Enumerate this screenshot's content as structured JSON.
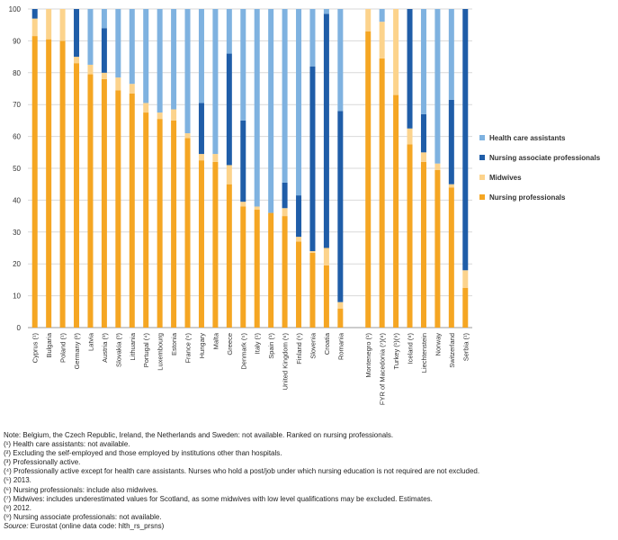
{
  "chart_data": {
    "type": "bar",
    "stacked": true,
    "ylim": [
      0,
      100
    ],
    "yticks": [
      0,
      10,
      20,
      30,
      40,
      50,
      60,
      70,
      80,
      90,
      100
    ],
    "grid": true,
    "legend_position": "right",
    "categories": [
      "Cyprus (¹)",
      "Bulgaria",
      "Poland (¹)",
      "Germany (²)",
      "Latvia",
      "Austria (³)",
      "Slovakia (³)",
      "Lithuania",
      "Portugal (⁴)",
      "Luxembourg",
      "Estonia",
      "France (⁵)",
      "Hungary",
      "Malta",
      "Greece",
      "Denmark (⁵)",
      "Italy (¹)",
      "Spain (¹)",
      "United Kingdom (⁶)",
      "Finland (⁶)",
      "Slovenia",
      "Croatia",
      "Romania",
      "",
      "Montenegro (¹)",
      "FYR of Macedonia (⁷)(⁸)",
      "Turkey (¹)(⁹)",
      "Iceland (⁸)",
      "Liechtenstein",
      "Norway",
      "Switzerland",
      "Serbia (¹)"
    ],
    "series": [
      {
        "name": "Nursing professionals",
        "color": "#f5a623",
        "values": [
          91.5,
          90.5,
          90,
          83,
          79.5,
          78,
          74.5,
          73.5,
          67.5,
          65.5,
          65,
          59.5,
          52.5,
          52,
          45,
          38,
          37,
          36,
          35,
          27,
          23.5,
          19.5,
          6,
          null,
          93,
          84.5,
          73,
          57.5,
          52,
          49.5,
          44,
          12.5
        ]
      },
      {
        "name": "Midwives",
        "color": "#fcd38c",
        "values": [
          5.5,
          9.5,
          10,
          2,
          3,
          2,
          4,
          3,
          3,
          2,
          3.5,
          1.5,
          2,
          2.5,
          6,
          1.5,
          1,
          0,
          2.5,
          1.5,
          0.5,
          5.5,
          2,
          null,
          7,
          11.5,
          27,
          5,
          3,
          2,
          1,
          5.5
        ]
      },
      {
        "name": "Nursing associate professionals",
        "color": "#1f5da8",
        "values": [
          3,
          0,
          0,
          15,
          0,
          14,
          0,
          0,
          0,
          0,
          0,
          0,
          16,
          0,
          35,
          25.5,
          0,
          0,
          8,
          13,
          58,
          73.5,
          60,
          null,
          0,
          0,
          0,
          37.5,
          12,
          0,
          26.5,
          82
        ]
      },
      {
        "name": "Health care assistants",
        "color": "#7fb2e0",
        "values": [
          0,
          0,
          0,
          0,
          17.5,
          6,
          21.5,
          23.5,
          29.5,
          32.5,
          31.5,
          39,
          29.5,
          45.5,
          14,
          35,
          62,
          64,
          54.5,
          58.5,
          18,
          1.5,
          32,
          null,
          0,
          4,
          0,
          0,
          33,
          48.5,
          28.5,
          0
        ]
      }
    ],
    "legend_order": [
      "Health care assistants",
      "Nursing associate professionals",
      "Midwives",
      "Nursing professionals"
    ]
  },
  "notes": [
    "Note: Belgium, the Czech Republic, Ireland, the Netherlands and Sweden: not available. Ranked on nursing professionals.",
    "(¹) Health care assistants: not available.",
    "(²) Excluding the self-employed and those employed by institutions other than hospitals.",
    "(³) Professionally active.",
    "(⁴) Professionally active except for health care assistants. Nurses who hold a post/job under which nursing education is not required are not excluded.",
    "(⁵) 2013.",
    "(⁶) Nursing professionals: include also midwives.",
    "(⁷) Midwives: includes underestimated values for Scotland, as some midwives with low level qualifications may be excluded. Estimates.",
    "(⁸) 2012.",
    "(⁹) Nursing associate professionals: not available."
  ],
  "source": {
    "label": "Source:",
    "text": " Eurostat (online data code: hlth_rs_prsns)"
  }
}
